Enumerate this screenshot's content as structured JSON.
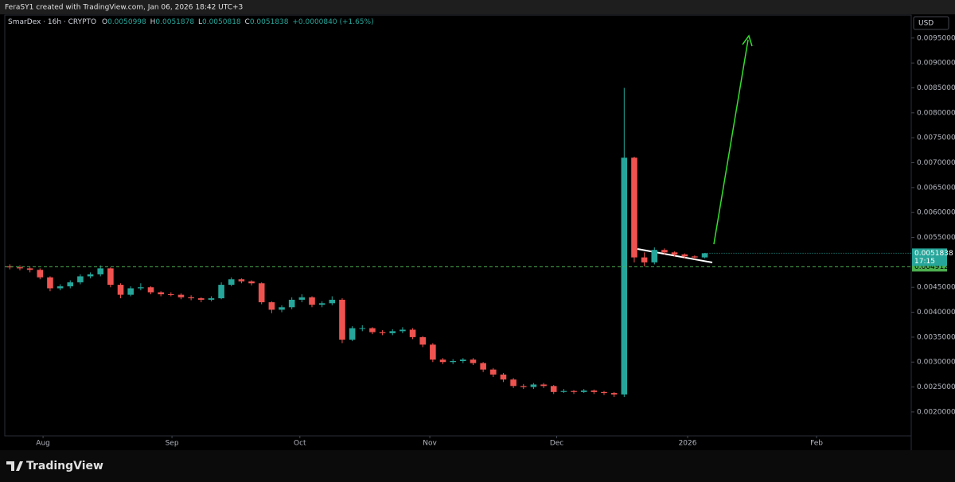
{
  "header": {
    "caption": "FeraSY1 created with TradingView.com, Jan 06, 2026 18:42 UTC+3"
  },
  "footer": {
    "brand": "TradingView"
  },
  "chart_data": {
    "type": "candlestick",
    "symbol": "SmarDex · 16h · CRYPTO",
    "ohlc_names": [
      "O",
      "H",
      "L",
      "C"
    ],
    "change_label": "+0.0000840 (+1.65%)",
    "currency": "USD",
    "countdown": "17:15",
    "up_color": "#26a69a",
    "down_color": "#ef5350",
    "open": [
      0.00492,
      0.0049,
      0.00488,
      0.00485,
      0.0047,
      0.00448,
      0.00452,
      0.0046,
      0.00472,
      0.00476,
      0.00488,
      0.00455,
      0.00435,
      0.00448,
      0.0045,
      0.0044,
      0.00436,
      0.00435,
      0.0043,
      0.00428,
      0.00425,
      0.00428,
      0.00455,
      0.00466,
      0.00462,
      0.00458,
      0.0042,
      0.00405,
      0.0041,
      0.00425,
      0.0043,
      0.00415,
      0.00418,
      0.00425,
      0.00345,
      0.00368,
      0.00368,
      0.0036,
      0.00358,
      0.00362,
      0.00365,
      0.0035,
      0.00335,
      0.00305,
      0.003,
      0.00302,
      0.00305,
      0.00298,
      0.00285,
      0.00275,
      0.00265,
      0.00252,
      0.0025,
      0.00255,
      0.00252,
      0.0024,
      0.00242,
      0.0024,
      0.00243,
      0.0024,
      0.00238,
      0.00235,
      0.0071,
      0.0051,
      0.005,
      0.00525,
      0.0052,
      0.00516,
      0.00512,
      0.0050998
    ],
    "high": [
      0.00496,
      0.00494,
      0.00492,
      0.00488,
      0.00472,
      0.00456,
      0.00464,
      0.00476,
      0.0048,
      0.00494,
      0.0049,
      0.00458,
      0.00452,
      0.00458,
      0.00452,
      0.00442,
      0.0044,
      0.00438,
      0.00434,
      0.0043,
      0.00432,
      0.0046,
      0.0047,
      0.00468,
      0.00464,
      0.0046,
      0.00422,
      0.00414,
      0.0043,
      0.00436,
      0.00432,
      0.00422,
      0.00432,
      0.00428,
      0.00372,
      0.00374,
      0.0037,
      0.00364,
      0.00366,
      0.0037,
      0.00368,
      0.00352,
      0.00338,
      0.00308,
      0.00306,
      0.00308,
      0.00308,
      0.003,
      0.00288,
      0.00278,
      0.00268,
      0.00256,
      0.00258,
      0.00258,
      0.00254,
      0.00246,
      0.00244,
      0.00246,
      0.00245,
      0.00242,
      0.0024,
      0.0085,
      0.00712,
      0.0052,
      0.0053,
      0.00528,
      0.00522,
      0.00518,
      0.00514,
      0.0051878
    ],
    "low": [
      0.00486,
      0.00484,
      0.0048,
      0.00466,
      0.00442,
      0.00444,
      0.00448,
      0.00456,
      0.00468,
      0.00472,
      0.0045,
      0.00428,
      0.00432,
      0.00444,
      0.00436,
      0.00432,
      0.00432,
      0.00426,
      0.00424,
      0.0042,
      0.00422,
      0.00426,
      0.00452,
      0.00458,
      0.00454,
      0.00416,
      0.00398,
      0.004,
      0.00406,
      0.0042,
      0.0041,
      0.0041,
      0.00414,
      0.00338,
      0.00342,
      0.00362,
      0.00356,
      0.00354,
      0.00354,
      0.00358,
      0.00346,
      0.0033,
      0.003,
      0.00296,
      0.00296,
      0.00298,
      0.00294,
      0.0028,
      0.0027,
      0.0026,
      0.00248,
      0.00246,
      0.00246,
      0.00248,
      0.00236,
      0.00238,
      0.00236,
      0.00238,
      0.00236,
      0.00234,
      0.0023,
      0.0023,
      0.005,
      0.00492,
      0.00496,
      0.00516,
      0.00512,
      0.00508,
      0.00506,
      0.0050818
    ],
    "close": [
      0.0049,
      0.00488,
      0.00485,
      0.0047,
      0.00448,
      0.00452,
      0.0046,
      0.00472,
      0.00476,
      0.00488,
      0.00455,
      0.00435,
      0.00448,
      0.0045,
      0.0044,
      0.00436,
      0.00435,
      0.0043,
      0.00428,
      0.00425,
      0.00428,
      0.00455,
      0.00466,
      0.00462,
      0.00458,
      0.0042,
      0.00405,
      0.0041,
      0.00425,
      0.0043,
      0.00415,
      0.00418,
      0.00425,
      0.00345,
      0.00368,
      0.00368,
      0.0036,
      0.00358,
      0.00362,
      0.00365,
      0.0035,
      0.00335,
      0.00305,
      0.003,
      0.00302,
      0.00305,
      0.00298,
      0.00285,
      0.00275,
      0.00265,
      0.00252,
      0.0025,
      0.00255,
      0.00252,
      0.0024,
      0.00242,
      0.0024,
      0.00243,
      0.0024,
      0.00238,
      0.00235,
      0.0071,
      0.0051,
      0.005,
      0.00525,
      0.0052,
      0.00516,
      0.00512,
      0.0050998,
      0.0051838
    ],
    "hline": {
      "value": 0.004912,
      "label": "0.0049120",
      "color": "#4caf50"
    },
    "xlim": [
      0,
      90
    ],
    "xticks": [
      {
        "value": 3.8,
        "label": "Aug"
      },
      {
        "value": 16.6,
        "label": "Sep"
      },
      {
        "value": 29.3,
        "label": "Oct"
      },
      {
        "value": 42.2,
        "label": "Nov"
      },
      {
        "value": 54.8,
        "label": "Dec"
      },
      {
        "value": 67.8,
        "label": "2026"
      },
      {
        "value": 80.6,
        "label": "Feb"
      }
    ],
    "ylim": [
      0.00152,
      0.00996
    ],
    "yticks": [
      {
        "value": 0.002,
        "label": "0.0020000"
      },
      {
        "value": 0.0025,
        "label": "0.0025000"
      },
      {
        "value": 0.003,
        "label": "0.0030000"
      },
      {
        "value": 0.0035,
        "label": "0.0035000"
      },
      {
        "value": 0.004,
        "label": "0.0040000"
      },
      {
        "value": 0.0045,
        "label": "0.0045000"
      },
      {
        "value": 0.0055,
        "label": "0.0055000"
      },
      {
        "value": 0.006,
        "label": "0.0060000"
      },
      {
        "value": 0.0065,
        "label": "0.0065000"
      },
      {
        "value": 0.007,
        "label": "0.0070000"
      },
      {
        "value": 0.0075,
        "label": "0.0075000"
      },
      {
        "value": 0.008,
        "label": "0.0080000"
      },
      {
        "value": 0.0085,
        "label": "0.0085000"
      },
      {
        "value": 0.009,
        "label": "0.0090000"
      },
      {
        "value": 0.0095,
        "label": "0.0095000"
      }
    ]
  }
}
